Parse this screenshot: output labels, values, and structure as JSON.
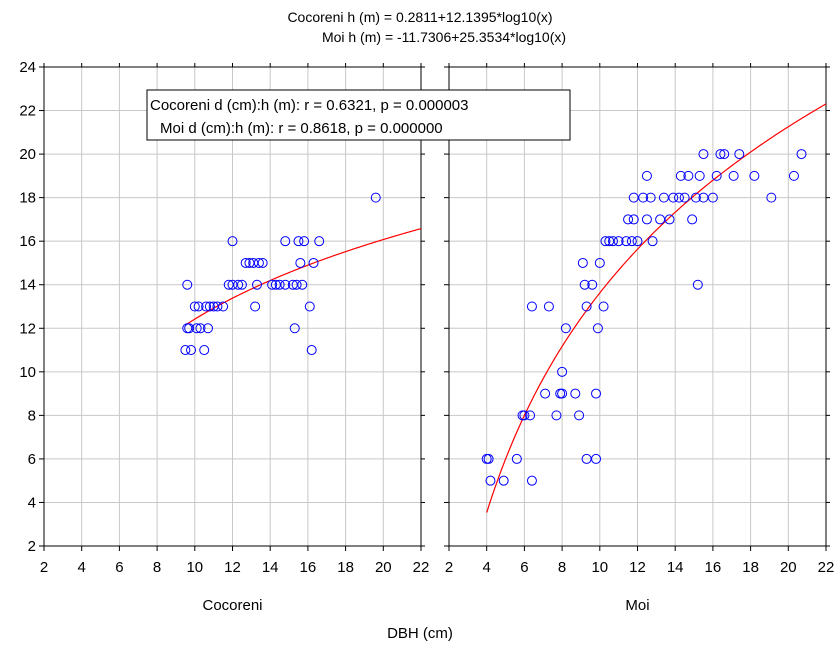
{
  "chart_data": {
    "type": "scatter",
    "title_lines": [
      "Cocoreni h (m) =   0.2811+12.1395*log10(x)",
      "Moi h (m) = -11.7306+25.3534*log10(x)"
    ],
    "xlabel": "DBH (cm)",
    "ylabel": "",
    "xlim": [
      2,
      22
    ],
    "ylim": [
      2,
      24
    ],
    "x_ticks": [
      2,
      4,
      6,
      8,
      10,
      12,
      14,
      16,
      18,
      20,
      22
    ],
    "y_ticks": [
      2,
      4,
      6,
      8,
      10,
      12,
      14,
      16,
      18,
      20,
      22,
      24
    ],
    "grid": true,
    "legend": {
      "placement": "top-center",
      "lines": [
        "Cocoreni  d (cm):h (m):   r = 0.6321, p = 0.000003",
        "Moi  d (cm):h (m):   r = 0.8618, p = 0.000000"
      ]
    },
    "colors": {
      "points": "#0000ff",
      "fit": "#ff0000",
      "grid": "#c8c8c8",
      "axis": "#000000"
    },
    "panels": [
      {
        "name": "Cocoreni",
        "fit": {
          "a": 0.2811,
          "b": 12.1395,
          "x_range": [
            9.5,
            22
          ]
        },
        "points": [
          [
            9.5,
            11
          ],
          [
            9.8,
            11
          ],
          [
            9.6,
            12
          ],
          [
            9.7,
            12
          ],
          [
            9.6,
            14
          ],
          [
            10.0,
            13
          ],
          [
            10.2,
            13
          ],
          [
            10.1,
            12
          ],
          [
            10.3,
            12
          ],
          [
            10.5,
            11
          ],
          [
            10.6,
            13
          ],
          [
            10.8,
            13
          ],
          [
            10.7,
            12
          ],
          [
            11.0,
            13
          ],
          [
            11.2,
            13
          ],
          [
            11.5,
            13
          ],
          [
            11.8,
            14
          ],
          [
            12.0,
            14
          ],
          [
            12.0,
            16
          ],
          [
            12.3,
            14
          ],
          [
            12.5,
            14
          ],
          [
            12.7,
            15
          ],
          [
            12.9,
            15
          ],
          [
            13.1,
            15
          ],
          [
            13.2,
            13
          ],
          [
            13.3,
            14
          ],
          [
            13.4,
            15
          ],
          [
            13.6,
            15
          ],
          [
            14.1,
            14
          ],
          [
            14.3,
            14
          ],
          [
            14.5,
            14
          ],
          [
            14.8,
            14
          ],
          [
            14.8,
            16
          ],
          [
            15.2,
            14
          ],
          [
            15.4,
            14
          ],
          [
            15.3,
            12
          ],
          [
            15.5,
            16
          ],
          [
            15.6,
            15
          ],
          [
            15.7,
            14
          ],
          [
            15.8,
            16
          ],
          [
            16.1,
            13
          ],
          [
            16.2,
            11
          ],
          [
            16.3,
            15
          ],
          [
            16.6,
            16
          ],
          [
            19.6,
            18
          ]
        ]
      },
      {
        "name": "Moi",
        "fit": {
          "a": -11.7306,
          "b": 25.3534,
          "x_range": [
            4,
            22
          ]
        },
        "points": [
          [
            4,
            6
          ],
          [
            4.1,
            6
          ],
          [
            4.2,
            5
          ],
          [
            4.9,
            5
          ],
          [
            5.6,
            6
          ],
          [
            5.9,
            8
          ],
          [
            6.0,
            8
          ],
          [
            6.3,
            8
          ],
          [
            6.4,
            5
          ],
          [
            6.4,
            13
          ],
          [
            7.1,
            9
          ],
          [
            7.3,
            13
          ],
          [
            7.7,
            8
          ],
          [
            7.9,
            9
          ],
          [
            8.0,
            9
          ],
          [
            8.0,
            10
          ],
          [
            8.2,
            12
          ],
          [
            8.7,
            9
          ],
          [
            8.9,
            8
          ],
          [
            9.1,
            15
          ],
          [
            9.2,
            14
          ],
          [
            9.3,
            6
          ],
          [
            9.3,
            13
          ],
          [
            9.6,
            14
          ],
          [
            9.8,
            6
          ],
          [
            9.8,
            9
          ],
          [
            9.9,
            12
          ],
          [
            10.0,
            15
          ],
          [
            10.2,
            13
          ],
          [
            10.3,
            16
          ],
          [
            10.5,
            16
          ],
          [
            10.7,
            16
          ],
          [
            11.0,
            16
          ],
          [
            11.4,
            16
          ],
          [
            11.5,
            17
          ],
          [
            11.7,
            16
          ],
          [
            11.8,
            18
          ],
          [
            11.8,
            17
          ],
          [
            12.0,
            16
          ],
          [
            12.3,
            18
          ],
          [
            12.5,
            17
          ],
          [
            12.5,
            19
          ],
          [
            12.7,
            18
          ],
          [
            12.8,
            16
          ],
          [
            13.2,
            17
          ],
          [
            13.4,
            18
          ],
          [
            13.7,
            17
          ],
          [
            13.9,
            18
          ],
          [
            14.2,
            18
          ],
          [
            14.3,
            19
          ],
          [
            14.5,
            18
          ],
          [
            14.7,
            19
          ],
          [
            14.9,
            17
          ],
          [
            15.1,
            18
          ],
          [
            15.2,
            14
          ],
          [
            15.3,
            19
          ],
          [
            15.5,
            20
          ],
          [
            15.5,
            18
          ],
          [
            16.0,
            18
          ],
          [
            16.2,
            19
          ],
          [
            16.4,
            20
          ],
          [
            16.6,
            20
          ],
          [
            17.1,
            19
          ],
          [
            17.4,
            20
          ],
          [
            18.2,
            19
          ],
          [
            19.1,
            18
          ],
          [
            20.3,
            19
          ],
          [
            20.7,
            20
          ]
        ]
      }
    ]
  }
}
